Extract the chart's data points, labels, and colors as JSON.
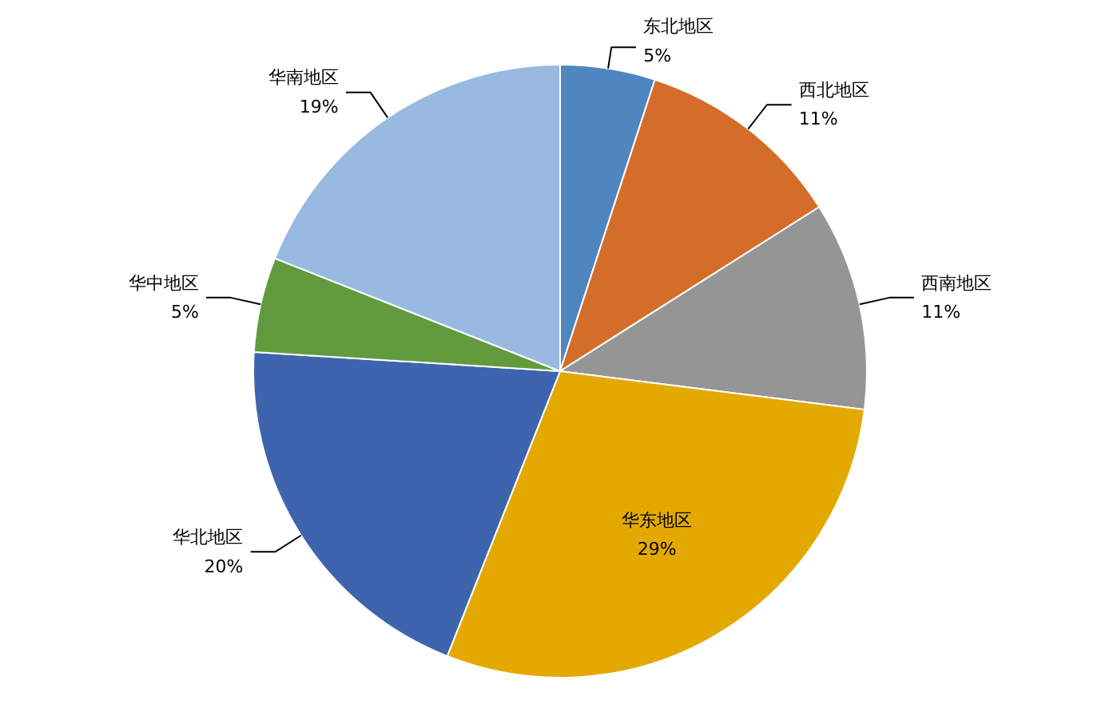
{
  "chart_data": {
    "type": "pie",
    "categories": [
      "东北地区",
      "西北地区",
      "西南地区",
      "华东地区",
      "华北地区",
      "华中地区",
      "华南地区"
    ],
    "values": [
      5,
      11,
      11,
      29,
      20,
      5,
      19
    ],
    "value_labels": [
      "5%",
      "11%",
      "11%",
      "29%",
      "20%",
      "5%",
      "19%"
    ],
    "colors": [
      "#4f86c0",
      "#d46c2a",
      "#959595",
      "#e3a900",
      "#3e64ad",
      "#629b3e",
      "#98b9e0"
    ]
  }
}
